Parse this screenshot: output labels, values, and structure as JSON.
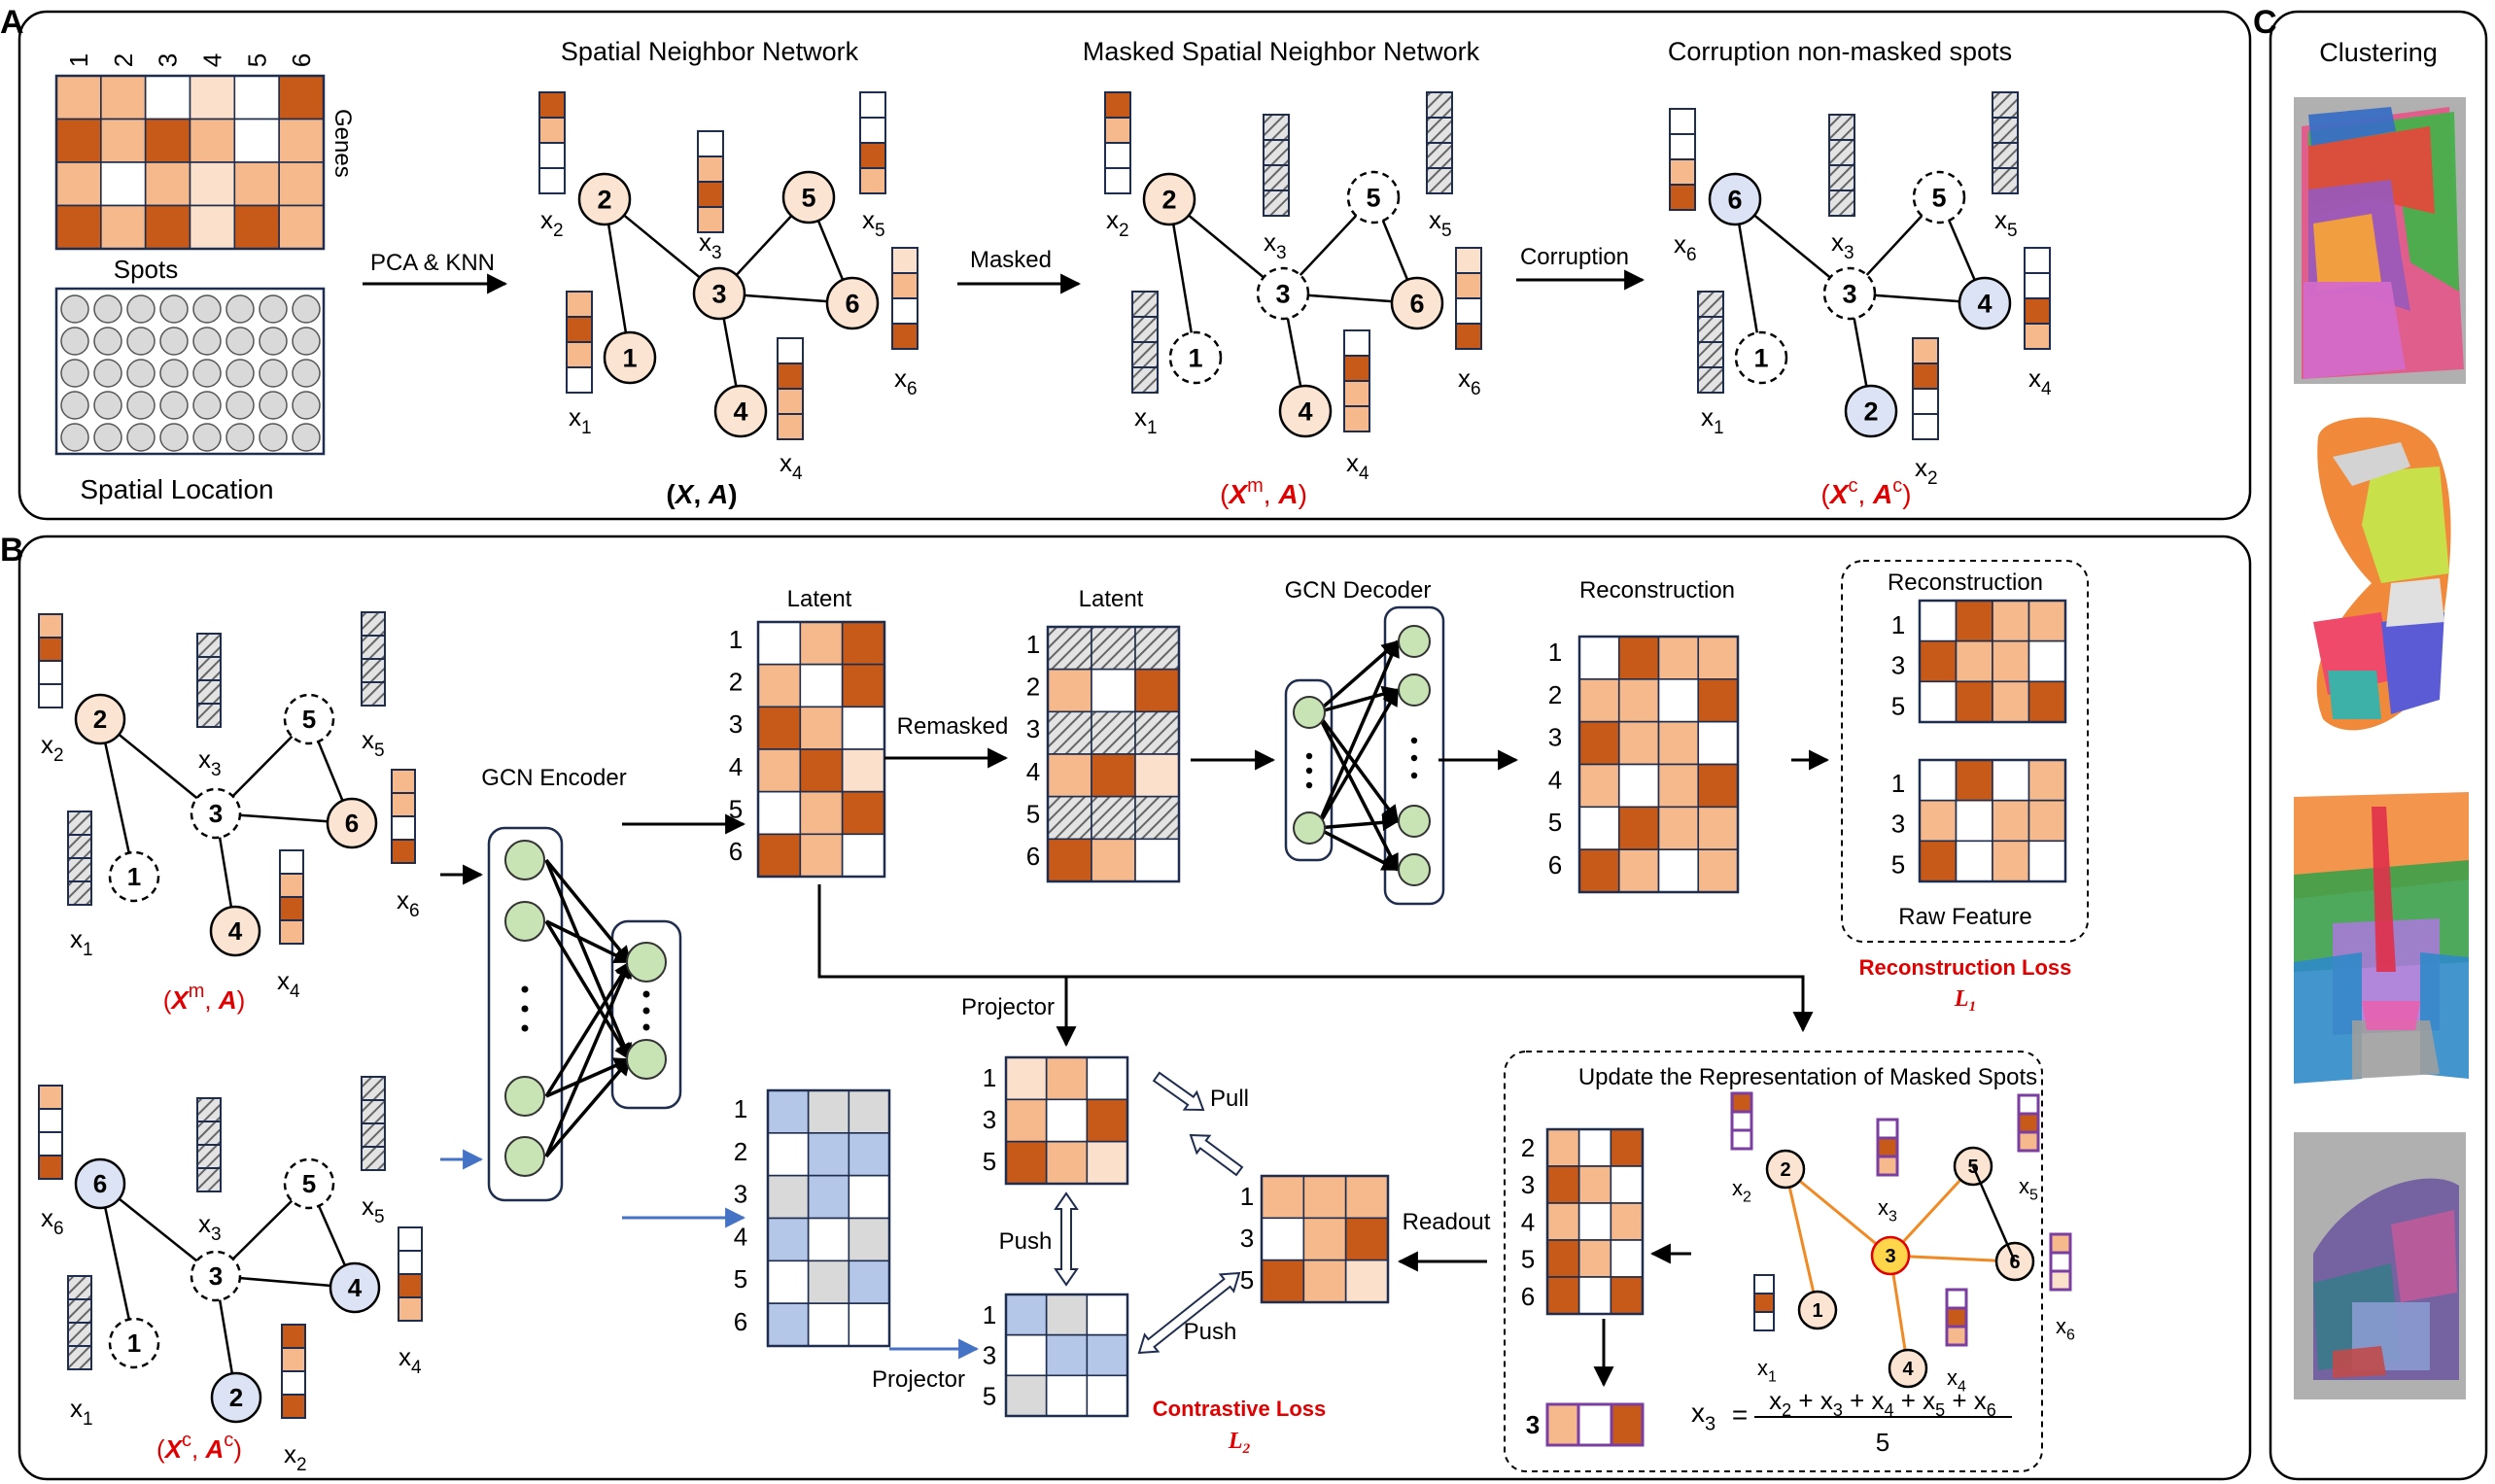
{
  "panels": {
    "a": "A",
    "b": "B",
    "c": "C"
  },
  "colors": {
    "dark": "#c85a19",
    "light": "#f5b98c",
    "pale": "#fbe0cb",
    "white": "#ffffff",
    "blue": "#b5c7e8",
    "grey": "#d9d9d9",
    "nodePeach": "#fce4d3",
    "nodeBlue": "#dbe3f4",
    "nodeGreen": "#c8e3b4",
    "nodeYellow": "#ffd54a",
    "accent": "#e00000",
    "orangeEdge": "#f08a24",
    "purple": "#7a3fa0",
    "blueArrow": "#4472c4"
  },
  "A": {
    "gene_cols": [
      "1",
      "2",
      "3",
      "4",
      "5",
      "6"
    ],
    "genes_label": "Genes",
    "spots_label": "Spots",
    "spatial_location": "Spatial Location",
    "pca_knn": "PCA & KNN",
    "masked": "Masked",
    "corruption": "Corruption",
    "titles": [
      "Spatial Neighbor Network",
      "Masked Spatial Neighbor Network",
      "Corruption non-masked spots"
    ],
    "pairs": [
      {
        "x": "X",
        "sep": ", ",
        "a": "A",
        "sup": ""
      },
      {
        "x": "X",
        "sep": ", ",
        "a": "A",
        "sup": "m"
      },
      {
        "x": "X",
        "sep": ", ",
        "a": "A",
        "sup": "c"
      }
    ]
  },
  "B": {
    "gcn_encoder": "GCN Encoder",
    "gcn_decoder": "GCN Decoder",
    "latent": "Latent",
    "latent2": "Latent",
    "remasked": "Remasked",
    "reconstruction": "Reconstruction",
    "recon_box_title": "Reconstruction",
    "raw_feature": "Raw Feature",
    "recon_loss": "Reconstruction Loss",
    "recon_loss_sym": "L",
    "projector_top": "Projector",
    "projector_bottom": "Projector",
    "pull": "Pull",
    "push1": "Push",
    "push2": "Push",
    "readout": "Readout",
    "update_title": "Update the Representation of Masked Spots",
    "contrastive_loss": "Contrastive Loss",
    "contrastive_sym": "L",
    "loss_sub1": "1",
    "loss_sub2": "2",
    "rows6": [
      "1",
      "2",
      "3",
      "4",
      "5",
      "6"
    ],
    "rows3": [
      "1",
      "3",
      "5"
    ],
    "rows_update": [
      "2",
      "3",
      "4",
      "5",
      "6"
    ],
    "update_result_label": "3",
    "formula": {
      "lhs": "x",
      "lhs_sub": "3",
      "eq": "=",
      "numerator": [
        "x",
        "2",
        " + ",
        "x",
        "3",
        " + ",
        "x",
        "4",
        " + ",
        "x",
        "5",
        " + ",
        "x",
        "6"
      ],
      "denominator": "5"
    }
  },
  "C": {
    "title": "Clustering"
  }
}
